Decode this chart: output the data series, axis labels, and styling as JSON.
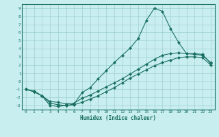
{
  "xlabel": "Humidex (Indice chaleur)",
  "bg_color": "#c8eef0",
  "grid_color": "#9ecfcf",
  "line_color": "#1a7060",
  "spine_color": "#1a7060",
  "xlim": [
    -0.5,
    23.5
  ],
  "ylim": [
    -3.5,
    9.5
  ],
  "xticks": [
    0,
    1,
    2,
    3,
    4,
    5,
    6,
    7,
    8,
    9,
    10,
    11,
    12,
    13,
    14,
    15,
    16,
    17,
    18,
    19,
    20,
    21,
    22,
    23
  ],
  "yticks": [
    -3,
    -2,
    -1,
    0,
    1,
    2,
    3,
    4,
    5,
    6,
    7,
    8,
    9
  ],
  "line1_x": [
    0,
    1,
    2,
    3,
    4,
    5,
    6,
    7,
    8,
    9,
    10,
    11,
    12,
    13,
    14,
    15,
    16,
    17,
    18,
    19,
    20,
    21,
    22,
    23
  ],
  "line1_y": [
    -1.0,
    -1.2,
    -1.8,
    -3.0,
    -3.1,
    -3.0,
    -2.8,
    -1.4,
    -0.8,
    0.3,
    1.3,
    2.3,
    3.2,
    4.1,
    5.3,
    7.5,
    9.0,
    8.6,
    6.5,
    4.8,
    3.4,
    3.4,
    3.3,
    2.2
  ],
  "line2_x": [
    0,
    1,
    2,
    3,
    4,
    5,
    6,
    7,
    8,
    9,
    10,
    11,
    12,
    13,
    14,
    15,
    16,
    17,
    18,
    19,
    20,
    21,
    22,
    23
  ],
  "line2_y": [
    -1.0,
    -1.3,
    -1.8,
    -2.5,
    -2.6,
    -2.8,
    -2.7,
    -2.1,
    -1.7,
    -1.2,
    -0.7,
    -0.2,
    0.3,
    0.9,
    1.5,
    2.1,
    2.7,
    3.2,
    3.4,
    3.5,
    3.4,
    3.3,
    3.2,
    2.3
  ],
  "line3_x": [
    0,
    1,
    2,
    3,
    4,
    5,
    6,
    7,
    8,
    9,
    10,
    11,
    12,
    13,
    14,
    15,
    16,
    17,
    18,
    19,
    20,
    21,
    22,
    23
  ],
  "line3_y": [
    -1.0,
    -1.3,
    -1.8,
    -2.7,
    -2.9,
    -3.0,
    -2.9,
    -2.6,
    -2.2,
    -1.8,
    -1.3,
    -0.8,
    -0.2,
    0.4,
    0.9,
    1.4,
    1.9,
    2.3,
    2.6,
    2.9,
    3.0,
    3.0,
    2.9,
    2.0
  ]
}
